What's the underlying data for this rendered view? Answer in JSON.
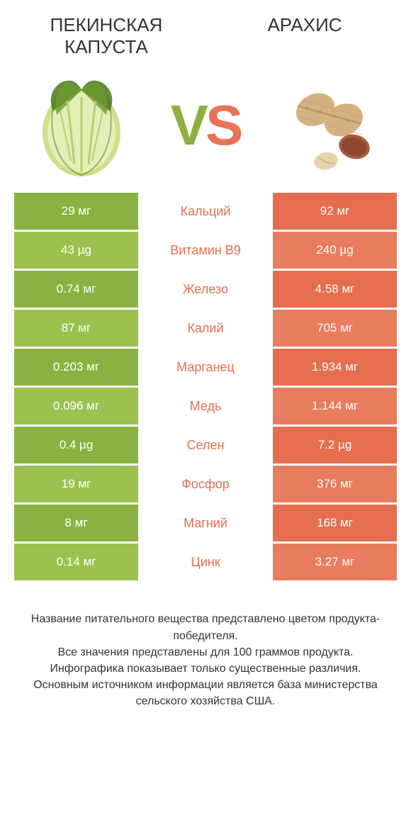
{
  "title_left": "ПЕКИНСКАЯ КАПУСТА",
  "title_right": "АРАХИС",
  "vs": "VS",
  "colors": {
    "left_dark": "#8ab240",
    "left_light": "#9bc14f",
    "right_dark": "#e46e4f",
    "right_light": "#e87c5e",
    "label_green": "#8ab240",
    "label_orange": "#e46e4f",
    "bg": "#ffffff",
    "text": "#333333",
    "white": "#ffffff"
  },
  "rows": [
    {
      "left": "29 мг",
      "label": "Кальций",
      "right": "92 мг",
      "row_shade": "dark",
      "label_color": "orange"
    },
    {
      "left": "43 µg",
      "label": "Витамин B9",
      "right": "240 µg",
      "row_shade": "light",
      "label_color": "orange"
    },
    {
      "left": "0.74 мг",
      "label": "Железо",
      "right": "4.58 мг",
      "row_shade": "dark",
      "label_color": "orange"
    },
    {
      "left": "87 мг",
      "label": "Калий",
      "right": "705 мг",
      "row_shade": "light",
      "label_color": "orange"
    },
    {
      "left": "0.203 мг",
      "label": "Марганец",
      "right": "1.934 мг",
      "row_shade": "dark",
      "label_color": "orange"
    },
    {
      "left": "0.096 мг",
      "label": "Медь",
      "right": "1.144 мг",
      "row_shade": "light",
      "label_color": "orange"
    },
    {
      "left": "0.4 µg",
      "label": "Селен",
      "right": "7.2 µg",
      "row_shade": "dark",
      "label_color": "orange"
    },
    {
      "left": "19 мг",
      "label": "Фосфор",
      "right": "376 мг",
      "row_shade": "light",
      "label_color": "orange"
    },
    {
      "left": "8 мг",
      "label": "Магний",
      "right": "168 мг",
      "row_shade": "dark",
      "label_color": "orange"
    },
    {
      "left": "0.14 мг",
      "label": "Цинк",
      "right": "3.27 мг",
      "row_shade": "light",
      "label_color": "orange"
    }
  ],
  "footer": [
    "Название питательного вещества представлено цветом продукта-победителя.",
    "Все значения представлены для 100 граммов продукта.",
    "Инфографика показывает только существенные различия.",
    "Основным источником информации является база министерства сельского хозяйства США."
  ]
}
